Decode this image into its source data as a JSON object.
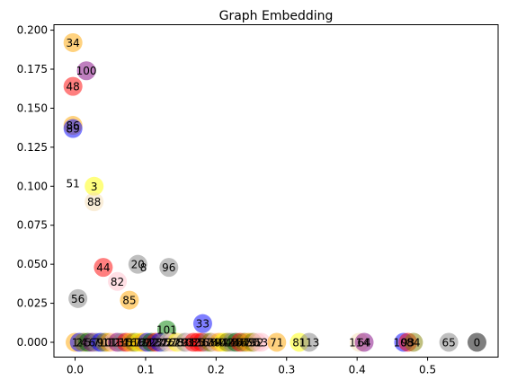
{
  "chart_data": {
    "type": "scatter",
    "title": "Graph Embedding",
    "xlabel": "",
    "ylabel": "",
    "xlim": [
      -0.03,
      0.6
    ],
    "ylim": [
      -0.0095,
      0.2035
    ],
    "xticks": [
      0.0,
      0.1,
      0.2,
      0.3,
      0.4,
      0.5
    ],
    "xtick_labels": [
      "0.0",
      "0.1",
      "0.2",
      "0.3",
      "0.4",
      "0.5"
    ],
    "yticks": [
      0.0,
      0.025,
      0.05,
      0.075,
      0.1,
      0.125,
      0.15,
      0.175,
      0.2
    ],
    "ytick_labels": [
      "0.000",
      "0.025",
      "0.050",
      "0.075",
      "0.100",
      "0.125",
      "0.150",
      "0.175",
      "0.200"
    ],
    "grid": false,
    "points": [
      {
        "label": "34",
        "x": -0.003,
        "y": 0.192,
        "color": "#ffa500"
      },
      {
        "label": "100",
        "x": 0.016,
        "y": 0.174,
        "color": "#800080"
      },
      {
        "label": "48",
        "x": -0.003,
        "y": 0.164,
        "color": "#ff0000"
      },
      {
        "label": "86",
        "x": -0.003,
        "y": 0.139,
        "color": "#ffa500"
      },
      {
        "label": "89",
        "x": -0.003,
        "y": 0.137,
        "color": "#0000ff"
      },
      {
        "label": "51",
        "x": -0.003,
        "y": 0.102,
        "color": ""
      },
      {
        "label": "3",
        "x": 0.027,
        "y": 0.1,
        "color": "#ffff00"
      },
      {
        "label": "88",
        "x": 0.027,
        "y": 0.09,
        "color": "#f5deb3"
      },
      {
        "label": "20",
        "x": 0.089,
        "y": 0.05,
        "color": "#808080"
      },
      {
        "label": "8",
        "x": 0.097,
        "y": 0.048,
        "color": ""
      },
      {
        "label": "96",
        "x": 0.133,
        "y": 0.048,
        "color": "#808080"
      },
      {
        "label": "44",
        "x": 0.04,
        "y": 0.048,
        "color": "#ff0000"
      },
      {
        "label": "82",
        "x": 0.06,
        "y": 0.039,
        "color": "#ffc0cb"
      },
      {
        "label": "56",
        "x": 0.004,
        "y": 0.028,
        "color": "#808080"
      },
      {
        "label": "85",
        "x": 0.077,
        "y": 0.027,
        "color": "#ffa500"
      },
      {
        "label": "33",
        "x": 0.181,
        "y": 0.012,
        "color": "#0000ff"
      },
      {
        "label": "101",
        "x": 0.13,
        "y": 0.008,
        "color": "#008000"
      },
      {
        "label": "1",
        "x": 0.0,
        "y": 0.0,
        "color": "#ffa500"
      },
      {
        "label": "2",
        "x": 0.006,
        "y": 0.0,
        "color": "#0000ff"
      },
      {
        "label": "4",
        "x": 0.012,
        "y": 0.0,
        "color": "#808000"
      },
      {
        "label": "5",
        "x": 0.018,
        "y": 0.0,
        "color": "#006400"
      },
      {
        "label": "6",
        "x": 0.024,
        "y": 0.0,
        "color": "#800080"
      },
      {
        "label": "7",
        "x": 0.03,
        "y": 0.0,
        "color": "#808080"
      },
      {
        "label": "9",
        "x": 0.036,
        "y": 0.0,
        "color": "#0000ff"
      },
      {
        "label": "10",
        "x": 0.042,
        "y": 0.0,
        "color": "#808000"
      },
      {
        "label": "11",
        "x": 0.048,
        "y": 0.0,
        "color": "#ffa500"
      },
      {
        "label": "12",
        "x": 0.054,
        "y": 0.0,
        "color": "#ffc0cb"
      },
      {
        "label": "13",
        "x": 0.06,
        "y": 0.0,
        "color": "#800080"
      },
      {
        "label": "14",
        "x": 0.066,
        "y": 0.0,
        "color": "#808080"
      },
      {
        "label": "15",
        "x": 0.072,
        "y": 0.0,
        "color": "#ff0000"
      },
      {
        "label": "16",
        "x": 0.078,
        "y": 0.0,
        "color": "#ffa500"
      },
      {
        "label": "17",
        "x": 0.084,
        "y": 0.0,
        "color": "#808000"
      },
      {
        "label": "18",
        "x": 0.09,
        "y": 0.0,
        "color": "#ffff00"
      },
      {
        "label": "19",
        "x": 0.096,
        "y": 0.0,
        "color": "#ffa500"
      },
      {
        "label": "21",
        "x": 0.102,
        "y": 0.0,
        "color": "#0000ff"
      },
      {
        "label": "22",
        "x": 0.108,
        "y": 0.0,
        "color": "#006400"
      },
      {
        "label": "23",
        "x": 0.114,
        "y": 0.0,
        "color": "#ff0000"
      },
      {
        "label": "24",
        "x": 0.12,
        "y": 0.0,
        "color": "#0000ff"
      },
      {
        "label": "25",
        "x": 0.126,
        "y": 0.0,
        "color": "#808080"
      },
      {
        "label": "26",
        "x": 0.132,
        "y": 0.0,
        "color": "#f5deb3"
      },
      {
        "label": "27",
        "x": 0.138,
        "y": 0.0,
        "color": "#ffc0cb"
      },
      {
        "label": "28",
        "x": 0.144,
        "y": 0.0,
        "color": "#ffff00"
      },
      {
        "label": "29",
        "x": 0.15,
        "y": 0.0,
        "color": "#f5deb3"
      },
      {
        "label": "30",
        "x": 0.156,
        "y": 0.0,
        "color": "#808080"
      },
      {
        "label": "31",
        "x": 0.162,
        "y": 0.0,
        "color": "#ffc0cb"
      },
      {
        "label": "32",
        "x": 0.168,
        "y": 0.0,
        "color": "#ff0000"
      },
      {
        "label": "35",
        "x": 0.174,
        "y": 0.0,
        "color": "#ff0000"
      },
      {
        "label": "36",
        "x": 0.18,
        "y": 0.0,
        "color": "#ff0000"
      },
      {
        "label": "37",
        "x": 0.186,
        "y": 0.0,
        "color": "#808080"
      },
      {
        "label": "38",
        "x": 0.192,
        "y": 0.0,
        "color": "#808000"
      },
      {
        "label": "39",
        "x": 0.198,
        "y": 0.0,
        "color": "#ffc0cb"
      },
      {
        "label": "40",
        "x": 0.204,
        "y": 0.0,
        "color": "#ffa500"
      },
      {
        "label": "41",
        "x": 0.21,
        "y": 0.0,
        "color": "#ffff00"
      },
      {
        "label": "42",
        "x": 0.216,
        "y": 0.0,
        "color": "#808000"
      },
      {
        "label": "43",
        "x": 0.222,
        "y": 0.0,
        "color": "#808080"
      },
      {
        "label": "45",
        "x": 0.228,
        "y": 0.0,
        "color": "#006400"
      },
      {
        "label": "46",
        "x": 0.234,
        "y": 0.0,
        "color": "#ff0000"
      },
      {
        "label": "47",
        "x": 0.24,
        "y": 0.0,
        "color": "#808000"
      },
      {
        "label": "49",
        "x": 0.246,
        "y": 0.0,
        "color": "#ffa500"
      },
      {
        "label": "50",
        "x": 0.252,
        "y": 0.0,
        "color": "#808000"
      },
      {
        "label": "52",
        "x": 0.258,
        "y": 0.0,
        "color": "#ffc0cb"
      },
      {
        "label": "53",
        "x": 0.264,
        "y": 0.0,
        "color": "#ffc0cb"
      },
      {
        "label": "71",
        "x": 0.286,
        "y": 0.0,
        "color": "#ffa500"
      },
      {
        "label": "81",
        "x": 0.318,
        "y": 0.0,
        "color": "#ffff00"
      },
      {
        "label": "113",
        "x": 0.332,
        "y": 0.0,
        "color": "#808080"
      },
      {
        "label": "114",
        "x": 0.403,
        "y": 0.0,
        "color": "#f5deb3"
      },
      {
        "label": "64",
        "x": 0.41,
        "y": 0.0,
        "color": "#800080"
      },
      {
        "label": "105",
        "x": 0.466,
        "y": 0.0,
        "color": "#0000ff"
      },
      {
        "label": "93",
        "x": 0.472,
        "y": 0.0,
        "color": "#ff0000"
      },
      {
        "label": "84",
        "x": 0.48,
        "y": 0.0,
        "color": "#808000"
      },
      {
        "label": "65",
        "x": 0.53,
        "y": 0.0,
        "color": "#808080"
      },
      {
        "label": "0",
        "x": 0.57,
        "y": 0.0,
        "color": "#000000"
      }
    ]
  }
}
